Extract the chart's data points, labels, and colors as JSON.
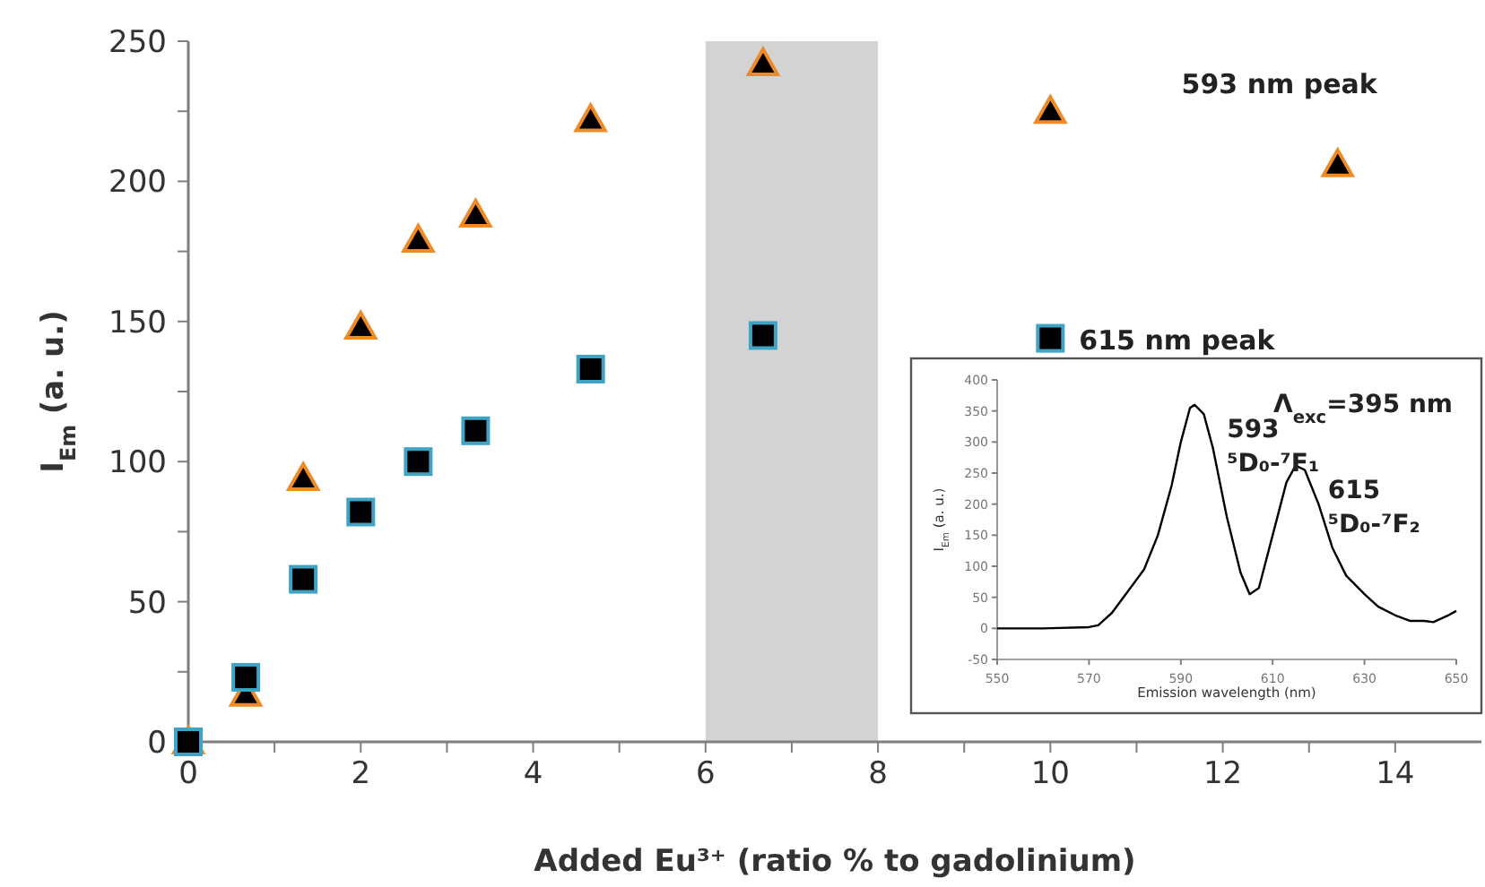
{
  "chart_data": [
    {
      "type": "scatter",
      "xlabel": "Added Eu³⁺ (ratio % to gadolinium)",
      "ylabel": "I$_{Em}$ (a. u.)",
      "x": [
        0,
        0.667,
        1.333,
        2,
        2.667,
        3.333,
        4.667,
        6.667,
        10,
        13.333
      ],
      "series": [
        {
          "name": "593 nm peak",
          "color": "#f08a24",
          "marker": "triangle",
          "values": [
            0,
            17,
            94,
            148,
            179,
            188,
            222,
            242,
            225,
            206
          ]
        },
        {
          "name": "615 nm peak",
          "color": "#3fa3c4",
          "marker": "square",
          "values": [
            0,
            23,
            58,
            82,
            100,
            111,
            133,
            145,
            144,
            null
          ]
        }
      ],
      "xlim": [
        0,
        15
      ],
      "xticks": [
        0,
        {
          "value": 1,
          "label": null
        },
        2,
        {
          "value": 3,
          "label": null
        },
        4,
        {
          "value": 5,
          "label": null
        },
        6,
        {
          "value": 7,
          "label": null
        },
        8,
        {
          "value": 9,
          "label": null
        },
        10,
        {
          "value": 11,
          "label": null
        },
        12,
        {
          "value": 13,
          "label": null
        },
        14
      ],
      "ylim": [
        0,
        250
      ],
      "yticks": [
        0,
        {
          "value": 25,
          "label": null
        },
        50,
        {
          "value": 75,
          "label": null
        },
        100,
        {
          "value": 125,
          "label": null
        },
        150,
        {
          "value": 175,
          "label": null
        },
        200,
        {
          "value": 225,
          "label": null
        },
        250
      ],
      "bands": [
        {
          "axis": "x",
          "from": 6,
          "to": 8,
          "color": "#d3d3d3"
        }
      ],
      "grid": false,
      "legend": false
    },
    {
      "type": "line",
      "xlabel": "Emission wavelength (nm)",
      "ylabel": "I$_{Em}$ (a. u.)",
      "x": [
        550,
        560,
        570,
        572,
        575,
        578,
        582,
        585,
        588,
        590,
        592,
        593,
        595,
        597,
        600,
        603,
        605,
        607,
        610,
        613,
        615,
        617,
        620,
        623,
        626,
        630,
        633,
        637,
        640,
        643,
        645,
        648,
        650
      ],
      "series": [
        {
          "color": "#000000",
          "values": [
            0,
            0,
            2,
            5,
            25,
            55,
            95,
            150,
            230,
            300,
            355,
            360,
            345,
            290,
            180,
            90,
            55,
            65,
            150,
            235,
            262,
            255,
            200,
            130,
            85,
            55,
            35,
            20,
            12,
            12,
            10,
            20,
            28
          ]
        }
      ],
      "xlim": [
        550,
        650
      ],
      "xticks": [
        550,
        570,
        590,
        610,
        630,
        650
      ],
      "ylim": [
        -50,
        400
      ],
      "yticks": [
        -50,
        0,
        50,
        100,
        150,
        200,
        250,
        300,
        350,
        400
      ],
      "annotations": [
        {
          "text": "593\n⁵D₀-⁷F₁",
          "x": 593,
          "y": 360
        },
        {
          "text": "615\n⁵D₀-⁷F₂",
          "x": 615,
          "y": 262
        },
        "Λ$_{exc}$=395 nm"
      ],
      "marker": "none",
      "line_style": "solid",
      "grid": false,
      "legend": false
    }
  ]
}
